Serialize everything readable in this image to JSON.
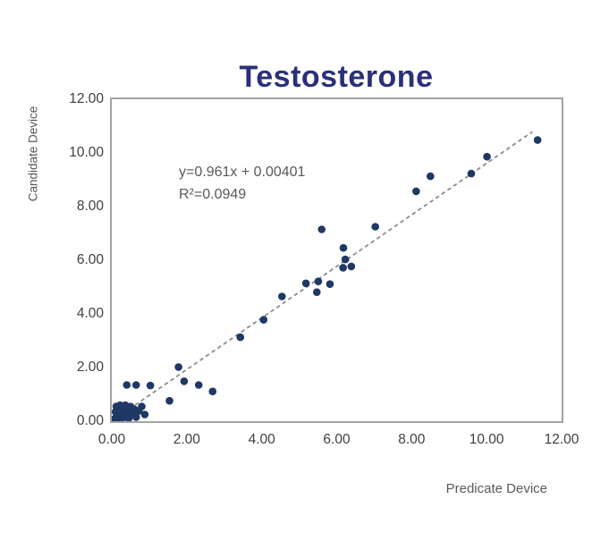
{
  "title": "Testosterone",
  "annotation": {
    "equation": "y=0.961x + 0.00401",
    "r_squared": "R²=0.0949"
  },
  "colors": {
    "title": "#2a3178",
    "point": "#1f3864",
    "trendline": "#8c8c8c",
    "axis_title_text": "#595959",
    "tick_text": "#404040",
    "plot_border": "#a3a3a3"
  },
  "chart_data": {
    "type": "scatter",
    "title": "Testosterone",
    "xlabel": "Predicate Device",
    "ylabel": "Candidate Device",
    "xlim": [
      0,
      12
    ],
    "ylim": [
      0,
      12
    ],
    "grid": false,
    "legend": null,
    "xtick_values": [
      0,
      2,
      4,
      6,
      8,
      10,
      12
    ],
    "xtick_labels": [
      "0.00",
      "2.00",
      "4.00",
      "6.00",
      "8.00",
      "10.00",
      "12.00"
    ],
    "ytick_values": [
      0,
      2,
      4,
      6,
      8,
      10,
      12
    ],
    "ytick_labels": [
      "0.00",
      "2.00",
      "4.00",
      "6.00",
      "8.00",
      "10.00",
      "12.00"
    ],
    "points": [
      [
        0.08,
        0.1
      ],
      [
        0.1,
        0.35
      ],
      [
        0.12,
        0.55
      ],
      [
        0.15,
        0.18
      ],
      [
        0.18,
        0.45
      ],
      [
        0.2,
        0.08
      ],
      [
        0.22,
        0.6
      ],
      [
        0.25,
        0.3
      ],
      [
        0.28,
        0.12
      ],
      [
        0.3,
        0.5
      ],
      [
        0.33,
        0.22
      ],
      [
        0.36,
        0.6
      ],
      [
        0.4,
        0.35
      ],
      [
        0.45,
        0.1
      ],
      [
        0.5,
        0.55
      ],
      [
        0.55,
        0.28
      ],
      [
        0.6,
        0.45
      ],
      [
        0.65,
        0.15
      ],
      [
        0.72,
        0.38
      ],
      [
        0.8,
        0.55
      ],
      [
        0.88,
        0.25
      ],
      [
        0.4,
        1.35
      ],
      [
        0.65,
        1.35
      ],
      [
        1.03,
        1.33
      ],
      [
        1.54,
        0.76
      ],
      [
        1.78,
        2.02
      ],
      [
        1.93,
        1.49
      ],
      [
        2.32,
        1.35
      ],
      [
        2.69,
        1.11
      ],
      [
        3.43,
        3.13
      ],
      [
        4.05,
        3.78
      ],
      [
        4.54,
        4.65
      ],
      [
        5.18,
        5.14
      ],
      [
        5.47,
        4.81
      ],
      [
        5.51,
        5.21
      ],
      [
        5.6,
        7.15
      ],
      [
        5.82,
        5.11
      ],
      [
        6.17,
        5.72
      ],
      [
        6.18,
        6.46
      ],
      [
        6.23,
        6.03
      ],
      [
        6.39,
        5.77
      ],
      [
        7.03,
        7.25
      ],
      [
        8.12,
        8.57
      ],
      [
        8.5,
        9.13
      ],
      [
        9.59,
        9.23
      ],
      [
        10.01,
        9.86
      ],
      [
        11.36,
        10.48
      ]
    ],
    "point_radius_px": 4.3,
    "trendline": {
      "slope": 0.961,
      "intercept": 0.00401,
      "x_start": 0.15,
      "x_end": 11.22,
      "style": "dashed"
    },
    "equation_label": "y=0.961x + 0.00401",
    "r_squared_label": "R²=0.0949"
  }
}
